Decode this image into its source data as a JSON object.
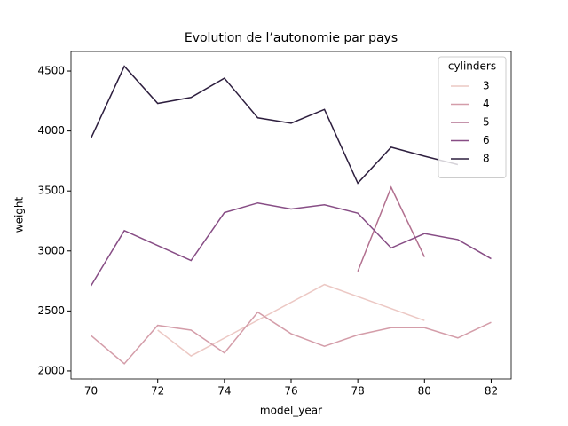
{
  "chart_data": {
    "type": "line",
    "title": "Evolution de l’autonomie par pays",
    "xlabel": "model_year",
    "ylabel": "weight",
    "xlim": [
      69.4,
      82.6
    ],
    "ylim": [
      1933,
      4663
    ],
    "xticks": [
      70,
      72,
      74,
      76,
      78,
      80,
      82
    ],
    "yticks": [
      2000,
      2500,
      3000,
      3500,
      4000,
      4500
    ],
    "legend_title": "cylinders",
    "legend_position": "upper right",
    "series": [
      {
        "name": "3",
        "color": "#ecc8c4",
        "x": [
          72,
          73,
          77,
          80
        ],
        "values": [
          2340,
          2125,
          2720,
          2420
        ]
      },
      {
        "name": "4",
        "color": "#d49da9",
        "x": [
          70,
          71,
          72,
          73,
          74,
          75,
          76,
          77,
          78,
          79,
          80,
          81,
          82
        ],
        "values": [
          2295,
          2060,
          2380,
          2340,
          2150,
          2490,
          2310,
          2205,
          2300,
          2360,
          2360,
          2275,
          2405
        ]
      },
      {
        "name": "5",
        "color": "#b2708f",
        "x": [
          78,
          79,
          80
        ],
        "values": [
          2830,
          3530,
          2950
        ]
      },
      {
        "name": "6",
        "color": "#874d85",
        "x": [
          70,
          71,
          73,
          74,
          75,
          76,
          77,
          78,
          79,
          80,
          81,
          82
        ],
        "values": [
          2710,
          3170,
          2920,
          3320,
          3400,
          3350,
          3385,
          3315,
          3025,
          3145,
          3095,
          2935
        ]
      },
      {
        "name": "8",
        "color": "#2d1e3e",
        "x": [
          70,
          71,
          72,
          73,
          74,
          75,
          76,
          77,
          78,
          79,
          80,
          81
        ],
        "values": [
          3940,
          4540,
          4230,
          4280,
          4440,
          4110,
          4065,
          4180,
          3565,
          3865,
          3790,
          3720
        ]
      }
    ]
  }
}
